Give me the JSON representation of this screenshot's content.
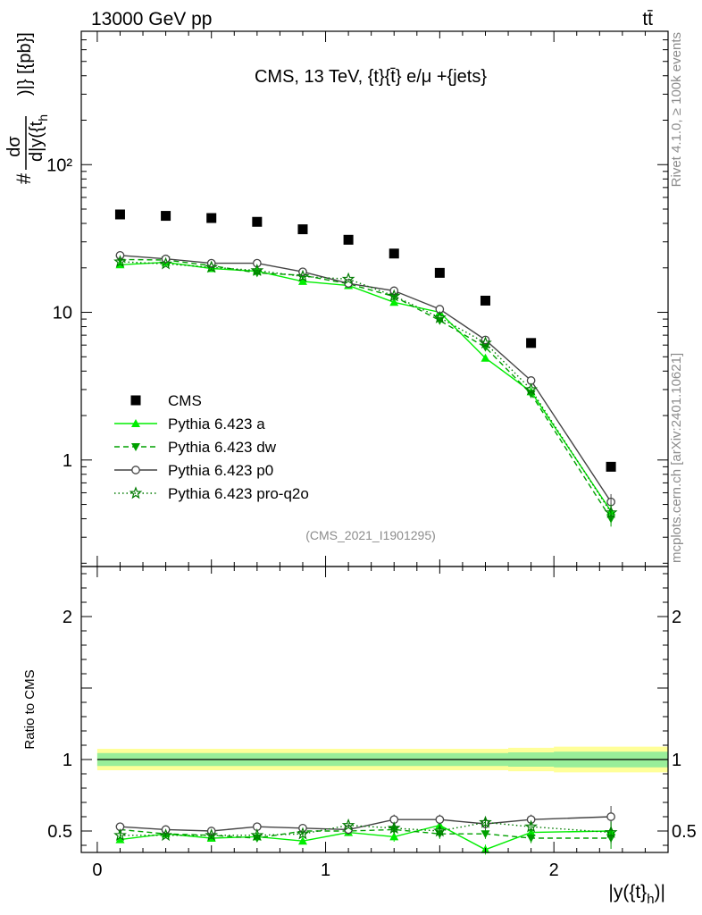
{
  "header": {
    "beam": "13000 GeV pp",
    "process": "tt̄"
  },
  "side_labels": {
    "rivet": "Rivet 4.1.0, ≥ 100k events",
    "source": "mcplots.cern.ch [arXiv:2401.10621]"
  },
  "chart_data": [
    {
      "type": "scatter",
      "panel": "main",
      "title": "CMS, 13 TeV, {t}{t̄} e/μ +{jets}",
      "analysis_tag": "(CMS_2021_I1901295)",
      "ylabel": "#dσ/d|y({t_h})|} [{pb}]",
      "ylabel_parts": {
        "prefix": "#",
        "num": "dσ",
        "den": "d|y({t",
        "sub": "h",
        "suffix": ")|} [{pb}]"
      },
      "xlabel": "|y({t}_h)|",
      "xlabel_parts": {
        "main": "|y({t}",
        "sub": "h",
        "suffix": ")|"
      },
      "y_scale": "log",
      "ylim": [
        0.19,
        800
      ],
      "xlim": [
        -0.07,
        2.5
      ],
      "y_ticks": [
        {
          "value": 1,
          "label": "1"
        },
        {
          "value": 10,
          "label": "10"
        },
        {
          "value": 100,
          "label": "10²"
        }
      ],
      "x": [
        0.1,
        0.3,
        0.5,
        0.7,
        0.9,
        1.1,
        1.3,
        1.5,
        1.7,
        1.9,
        2.25
      ],
      "series": [
        {
          "name": "CMS",
          "style": "data",
          "color": "#000000",
          "marker": "square",
          "values": [
            46,
            45,
            43.5,
            41,
            36.5,
            31,
            25,
            18.5,
            12,
            6.2,
            0.9
          ]
        },
        {
          "name": "Pythia 6.423 a",
          "style": "solid",
          "color": "#00ee00",
          "marker": "triangle-up",
          "values": [
            21,
            21.8,
            19.8,
            19,
            16.2,
            15.2,
            11.7,
            10,
            4.9,
            2.9,
            0.45
          ]
        },
        {
          "name": "Pythia 6.423 dw",
          "style": "dashed",
          "color": "#00a000",
          "marker": "triangle-down",
          "values": [
            22.8,
            22.6,
            20.7,
            18.5,
            17.8,
            15.6,
            12.8,
            8.8,
            5.8,
            2.8,
            0.4
          ]
        },
        {
          "name": "Pythia 6.423 p0",
          "style": "solid",
          "color": "#444444",
          "marker": "circle-open",
          "values": [
            24.3,
            23,
            21.5,
            21.5,
            18.8,
            15.7,
            14,
            10.5,
            6.5,
            3.45,
            0.52
          ]
        },
        {
          "name": "Pythia 6.423 pro-q2o",
          "style": "dotted",
          "color": "#007a00",
          "marker": "star-open",
          "values": [
            22,
            21.3,
            20.2,
            19.2,
            17.5,
            16.8,
            12.9,
            9.2,
            6.2,
            3.0,
            0.44
          ]
        }
      ]
    },
    {
      "type": "line",
      "panel": "ratio",
      "ylabel": "Ratio to CMS",
      "ylim": [
        0.35,
        2.35
      ],
      "y_ticks": [
        {
          "value": 0.5,
          "label": "0.5"
        },
        {
          "value": 1,
          "label": "1"
        },
        {
          "value": 2,
          "label": "2"
        }
      ],
      "x_ticks": [
        {
          "value": 0,
          "label": "0"
        },
        {
          "value": 1,
          "label": "1"
        },
        {
          "value": 2,
          "label": "2"
        }
      ],
      "x": [
        0.1,
        0.3,
        0.5,
        0.7,
        0.9,
        1.1,
        1.3,
        1.5,
        1.7,
        1.9,
        2.25
      ],
      "x_edges": [
        0,
        0.2,
        0.4,
        0.6,
        0.8,
        1.0,
        1.2,
        1.4,
        1.6,
        1.8,
        2.0,
        2.5
      ],
      "band_outer": [
        0.075,
        0.075,
        0.075,
        0.075,
        0.075,
        0.075,
        0.075,
        0.075,
        0.075,
        0.082,
        0.09
      ],
      "band_inner": [
        0.045,
        0.045,
        0.045,
        0.045,
        0.045,
        0.045,
        0.045,
        0.045,
        0.045,
        0.05,
        0.055
      ],
      "series": [
        {
          "name": "Pythia 6.423 a",
          "values": [
            0.44,
            0.48,
            0.45,
            0.46,
            0.43,
            0.49,
            0.46,
            0.54,
            0.37,
            0.49,
            0.5
          ]
        },
        {
          "name": "Pythia 6.423 dw",
          "values": [
            0.51,
            0.48,
            0.47,
            0.45,
            0.5,
            0.5,
            0.51,
            0.48,
            0.48,
            0.45,
            0.45
          ]
        },
        {
          "name": "Pythia 6.423 p0",
          "values": [
            0.53,
            0.51,
            0.5,
            0.53,
            0.52,
            0.51,
            0.58,
            0.58,
            0.55,
            0.58,
            0.6
          ]
        },
        {
          "name": "Pythia 6.423 pro-q2o",
          "values": [
            0.47,
            0.47,
            0.47,
            0.47,
            0.48,
            0.54,
            0.52,
            0.5,
            0.56,
            0.53,
            0.49
          ]
        }
      ]
    }
  ]
}
